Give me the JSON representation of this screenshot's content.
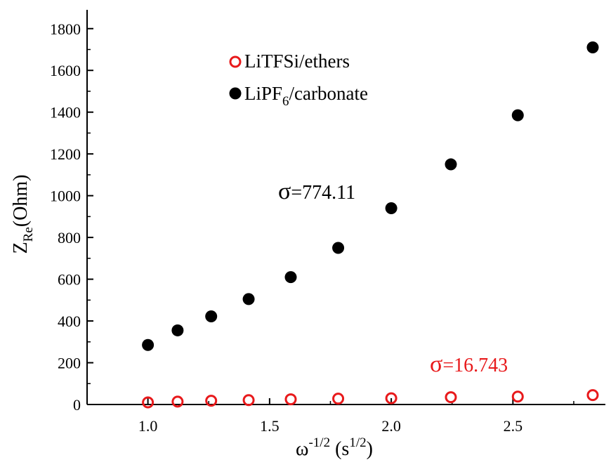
{
  "chart_data": {
    "type": "scatter",
    "xlabel": {
      "base": "ω",
      "base_sup": "-1/2",
      "unit_open": " (s",
      "unit_sup": "1/2",
      "unit_close": ")"
    },
    "ylabel": {
      "base": "Z",
      "sub": "Re",
      "rest": "(Ohm)"
    },
    "xlim": [
      0.75,
      2.88
    ],
    "ylim": [
      0,
      1890
    ],
    "xticks": [
      1.0,
      1.5,
      2.0,
      2.5
    ],
    "xtick_labels": [
      "1.0",
      "1.5",
      "2.0",
      "2.5"
    ],
    "yticks": [
      0,
      200,
      400,
      600,
      800,
      1000,
      1200,
      1400,
      1600,
      1800
    ],
    "ytick_labels": [
      "0",
      "200",
      "400",
      "600",
      "800",
      "1000",
      "1200",
      "1400",
      "1600",
      "1800"
    ],
    "grid": false,
    "legend_position": "top-left",
    "series": [
      {
        "name": "LiTFSi/ethers",
        "marker": "open-circle",
        "color": "#e8191b",
        "x": [
          1.0,
          1.122,
          1.26,
          1.414,
          1.587,
          1.782,
          2.0,
          2.245,
          2.52,
          2.828
        ],
        "y": [
          10,
          14,
          18,
          21,
          25,
          28,
          30,
          35,
          38,
          45
        ]
      },
      {
        "name": "LiPF6/carbonate",
        "name_parts": {
          "pre": "LiPF",
          "sub": "6",
          "post": "/carbonate"
        },
        "marker": "filled-circle",
        "color": "#000000",
        "x": [
          1.0,
          1.122,
          1.26,
          1.414,
          1.587,
          1.782,
          2.0,
          2.245,
          2.52,
          2.828
        ],
        "y": [
          285,
          355,
          422,
          505,
          610,
          750,
          940,
          1150,
          1385,
          1710
        ]
      }
    ],
    "annotations": [
      {
        "symbol": "σ",
        "value": "=774.11",
        "color": "#000000"
      },
      {
        "symbol": "σ",
        "value": "=16.743",
        "color": "#e8191b"
      }
    ]
  }
}
